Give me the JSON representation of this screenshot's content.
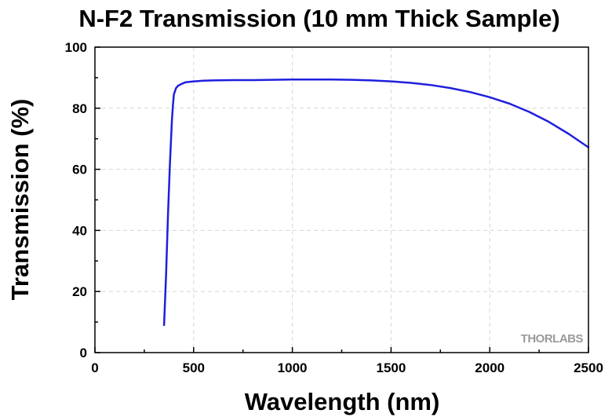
{
  "chart_data": {
    "type": "line",
    "title": "N-F2 Transmission (10 mm Thick Sample)",
    "xlabel": "Wavelength (nm)",
    "ylabel": "Transmission (%)",
    "xlim": [
      0,
      2500
    ],
    "ylim": [
      0,
      100
    ],
    "xticks": [
      0,
      500,
      1000,
      1500,
      2000,
      2500
    ],
    "xtick_labels": [
      "0",
      "500",
      "1000",
      "1500",
      "2000",
      "2500"
    ],
    "yticks": [
      0,
      20,
      40,
      60,
      80,
      100
    ],
    "ytick_labels": [
      "0",
      "20",
      "40",
      "60",
      "80",
      "100"
    ],
    "x_minor_step": 250,
    "y_minor_step": 10,
    "grid": true,
    "watermark": "THORLABS",
    "series_color": "#1f1fdd",
    "series": [
      {
        "x": [
          350,
          360,
          370,
          380,
          390,
          395,
          400,
          410,
          420,
          440,
          460,
          500,
          550,
          600,
          700,
          800,
          900,
          1000,
          1100,
          1200,
          1300,
          1400,
          1500,
          1600,
          1700,
          1800,
          1900,
          2000,
          2100,
          2200,
          2300,
          2400,
          2500
        ],
        "y": [
          9,
          25,
          45,
          62,
          76,
          81,
          84.5,
          86.5,
          87.3,
          88,
          88.5,
          88.8,
          89,
          89.1,
          89.2,
          89.2,
          89.3,
          89.4,
          89.4,
          89.4,
          89.3,
          89.1,
          88.8,
          88.3,
          87.6,
          86.6,
          85.3,
          83.6,
          81.5,
          78.8,
          75.5,
          71.6,
          67.2
        ]
      }
    ]
  }
}
